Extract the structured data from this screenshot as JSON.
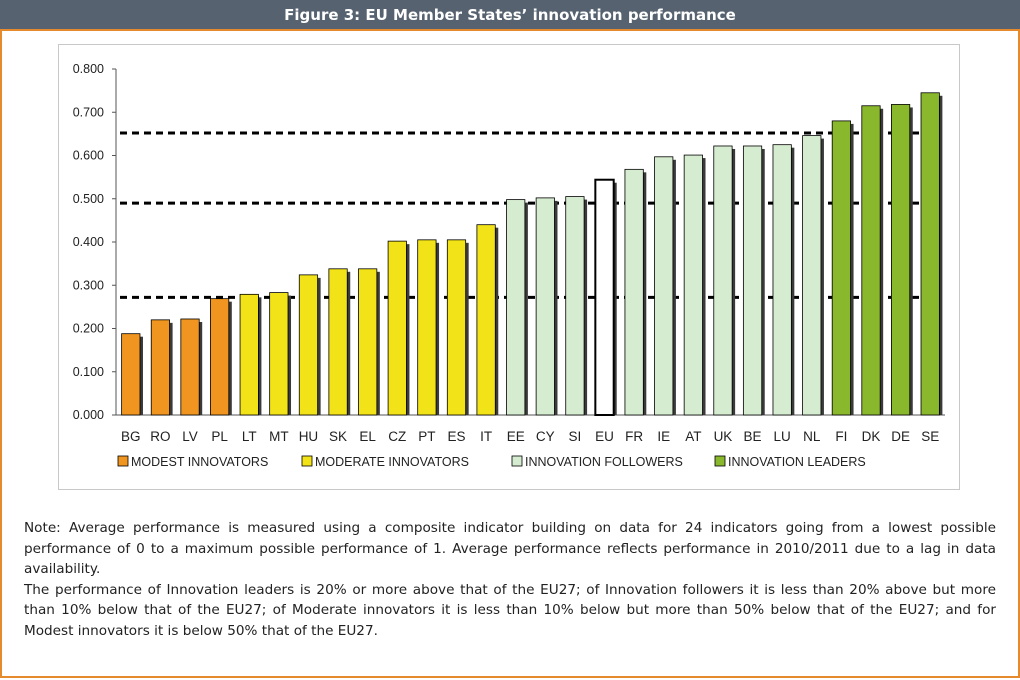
{
  "header": {
    "title": "Figure 3: EU Member States’ innovation performance"
  },
  "chart_data": {
    "type": "bar",
    "categories": [
      "BG",
      "RO",
      "LV",
      "PL",
      "LT",
      "MT",
      "HU",
      "SK",
      "EL",
      "CZ",
      "PT",
      "ES",
      "IT",
      "EE",
      "CY",
      "SI",
      "EU",
      "FR",
      "IE",
      "AT",
      "UK",
      "BE",
      "LU",
      "NL",
      "FI",
      "DK",
      "DE",
      "SE"
    ],
    "values": [
      0.188,
      0.22,
      0.222,
      0.269,
      0.279,
      0.283,
      0.324,
      0.338,
      0.338,
      0.402,
      0.405,
      0.405,
      0.44,
      0.498,
      0.502,
      0.505,
      0.544,
      0.568,
      0.597,
      0.601,
      0.622,
      0.622,
      0.625,
      0.646,
      0.68,
      0.715,
      0.718,
      0.745
    ],
    "groups": [
      "modest",
      "modest",
      "modest",
      "modest",
      "moderate",
      "moderate",
      "moderate",
      "moderate",
      "moderate",
      "moderate",
      "moderate",
      "moderate",
      "moderate",
      "follower",
      "follower",
      "follower",
      "eu",
      "follower",
      "follower",
      "follower",
      "follower",
      "follower",
      "follower",
      "follower",
      "leader",
      "leader",
      "leader",
      "leader"
    ],
    "group_colors": {
      "modest": "#f0951f",
      "moderate": "#f2e318",
      "follower": "#d6ecd0",
      "leader": "#8ab82c",
      "eu": "#ffffff"
    },
    "reference_lines": [
      0.652,
      0.49,
      0.272
    ],
    "ylim": [
      0,
      0.8
    ],
    "yticks": [
      "0.000",
      "0.100",
      "0.200",
      "0.300",
      "0.400",
      "0.500",
      "0.600",
      "0.700",
      "0.800"
    ],
    "legend": [
      {
        "label": "MODEST INNOVATORS",
        "group": "modest"
      },
      {
        "label": "MODERATE INNOVATORS",
        "group": "moderate"
      },
      {
        "label": "INNOVATION FOLLOWERS",
        "group": "follower"
      },
      {
        "label": "INNOVATION LEADERS",
        "group": "leader"
      }
    ],
    "grid": false,
    "legend_position": "bottom"
  },
  "note": {
    "p1": "Note: Average performance is measured using a composite indicator building on data for 24 indicators going from a lowest possible performance of 0 to a maximum possible performance of 1. Average performance reflects performance in 2010/2011 due to a lag in data availability.",
    "p2": "The performance of Innovation leaders is 20% or more above that of the EU27; of Innovation followers it is less than 20% above but more than 10% below that of the EU27; of Moderate innovators it is less than 10% below but more than 50% below that of the EU27; and for Modest innovators it is below 50% that of the EU27."
  }
}
